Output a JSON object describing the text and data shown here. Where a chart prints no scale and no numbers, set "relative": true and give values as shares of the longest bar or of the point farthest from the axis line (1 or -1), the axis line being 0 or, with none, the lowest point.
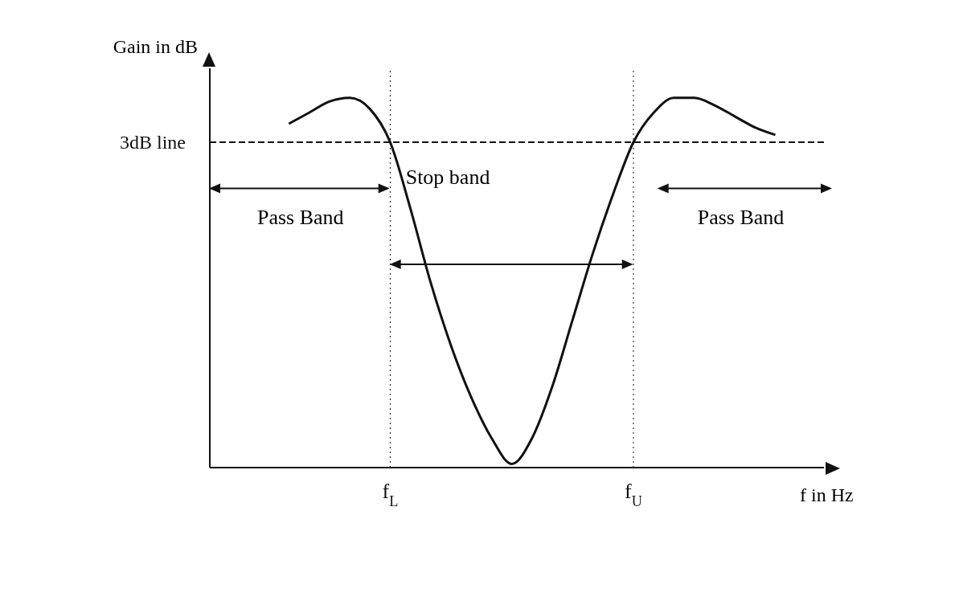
{
  "chart_data": {
    "type": "line",
    "relative": true,
    "xlabel": "f in Hz",
    "ylabel": "Gain in dB",
    "categories": [
      null,
      null,
      null,
      null,
      null,
      "f$_{L}$",
      null,
      null,
      null,
      null,
      null,
      null,
      null,
      null,
      null,
      null,
      null,
      "f$_{U}$",
      null,
      null,
      null,
      null,
      null,
      null,
      null
    ],
    "line_style": "solid",
    "series": [
      {
        "color": "#111111",
        "values": [
          0.93,
          0.96,
          0.99,
          1,
          0.97,
          0.88,
          0.7,
          0.5,
          0.33,
          0.19,
          0.08,
          0.01,
          0.08,
          0.22,
          0.4,
          0.58,
          0.74,
          0.88,
          0.96,
          1,
          1,
          0.98,
          0.95,
          0.92,
          0.9
        ]
      }
    ],
    "ref_lines": [
      {
        "axis": "y",
        "value": 0.88,
        "label": "3dB line",
        "line_style": "dashed"
      },
      {
        "axis": "x",
        "value": "f$_{L}$",
        "line_style": "dotted"
      },
      {
        "axis": "x",
        "value": "f$_{U}$",
        "line_style": "dotted"
      }
    ],
    "annotations": [
      "Pass Band",
      "Stop band",
      "Pass Band"
    ]
  }
}
